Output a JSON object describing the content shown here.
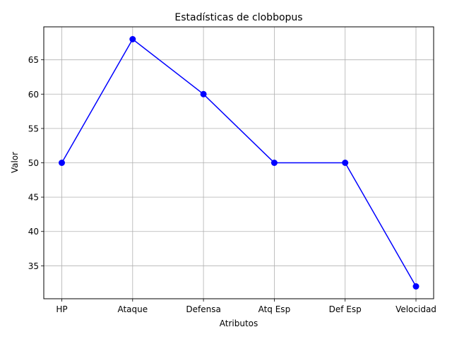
{
  "chart_data": {
    "type": "line",
    "title": "Estadísticas de clobbopus",
    "xlabel": "Atributos",
    "ylabel": "Valor",
    "categories": [
      "HP",
      "Ataque",
      "Defensa",
      "Atq Esp",
      "Def Esp",
      "Velocidad"
    ],
    "series": [
      {
        "values": [
          50,
          68,
          60,
          50,
          50,
          32
        ],
        "color": "#0000ff",
        "marker": "circle"
      }
    ],
    "ylim": [
      30.2,
      69.8
    ],
    "yticks": [
      35,
      40,
      45,
      50,
      55,
      60,
      65
    ],
    "grid": true
  }
}
